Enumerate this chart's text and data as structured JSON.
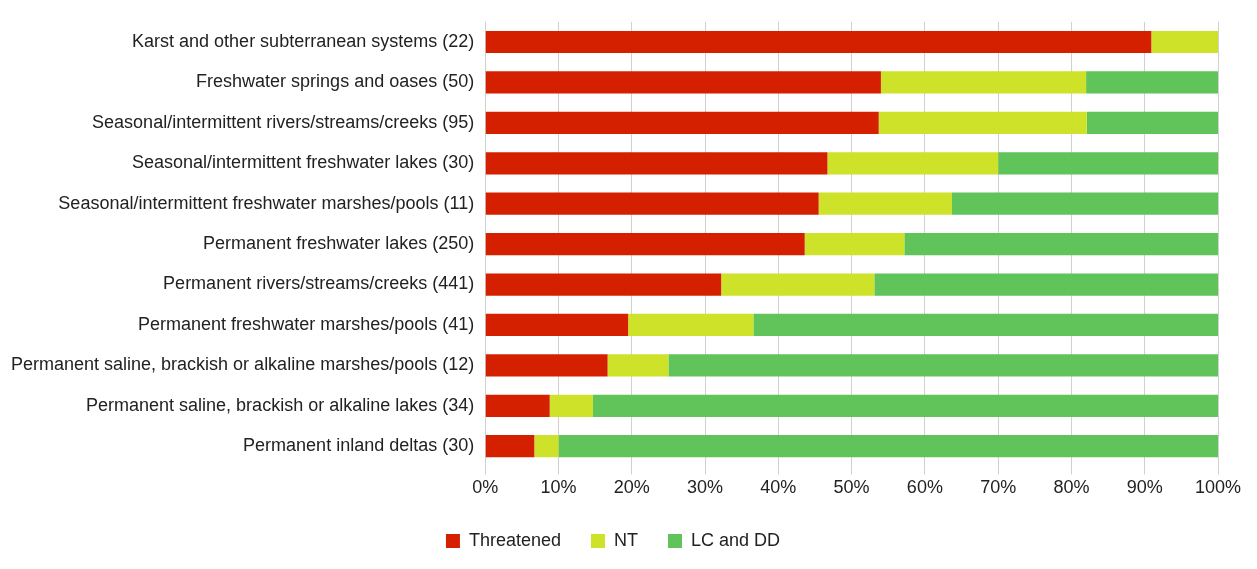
{
  "chart_data": {
    "type": "bar",
    "orientation": "horizontal",
    "stacked": true,
    "categories": [
      "Karst and other subterranean systems (22)",
      "Freshwater springs and oases (50)",
      "Seasonal/intermittent rivers/streams/creeks (95)",
      "Seasonal/intermittent freshwater lakes (30)",
      "Seasonal/intermittent freshwater marshes/pools (11)",
      "Permanent freshwater lakes (250)",
      "Permanent rivers/streams/creeks (441)",
      "Permanent freshwater marshes/pools (41)",
      "Permanent saline, brackish or alkaline marshes/pools (12)",
      "Permanent saline, brackish or alkaline lakes (34)",
      "Permanent inland deltas (30)"
    ],
    "series": [
      {
        "name": "Threatened",
        "color": "#d52000",
        "values": [
          90.9,
          54.0,
          53.7,
          46.7,
          45.5,
          43.6,
          32.2,
          19.5,
          16.7,
          8.8,
          6.7
        ]
      },
      {
        "name": "NT",
        "color": "#cde228",
        "values": [
          9.1,
          28.0,
          28.4,
          23.3,
          18.2,
          13.6,
          20.9,
          17.1,
          8.3,
          5.9,
          3.3
        ]
      },
      {
        "name": "LC and DD",
        "color": "#60c45a",
        "values": [
          0,
          18.0,
          17.9,
          30.0,
          36.3,
          42.8,
          46.9,
          63.4,
          75.0,
          85.3,
          90.0
        ]
      }
    ],
    "xlim": [
      0,
      100
    ],
    "xticks": [
      {
        "value": 0,
        "label": "0%"
      },
      {
        "value": 10,
        "label": "10%"
      },
      {
        "value": 20,
        "label": "20%"
      },
      {
        "value": 30,
        "label": "30%"
      },
      {
        "value": 40,
        "label": "40%"
      },
      {
        "value": 50,
        "label": "50%"
      },
      {
        "value": 60,
        "label": "60%"
      },
      {
        "value": 70,
        "label": "70%"
      },
      {
        "value": 80,
        "label": "80%"
      },
      {
        "value": 90,
        "label": "90%"
      },
      {
        "value": 100,
        "label": "100%"
      }
    ],
    "grid": "x",
    "legend": "bottom"
  }
}
